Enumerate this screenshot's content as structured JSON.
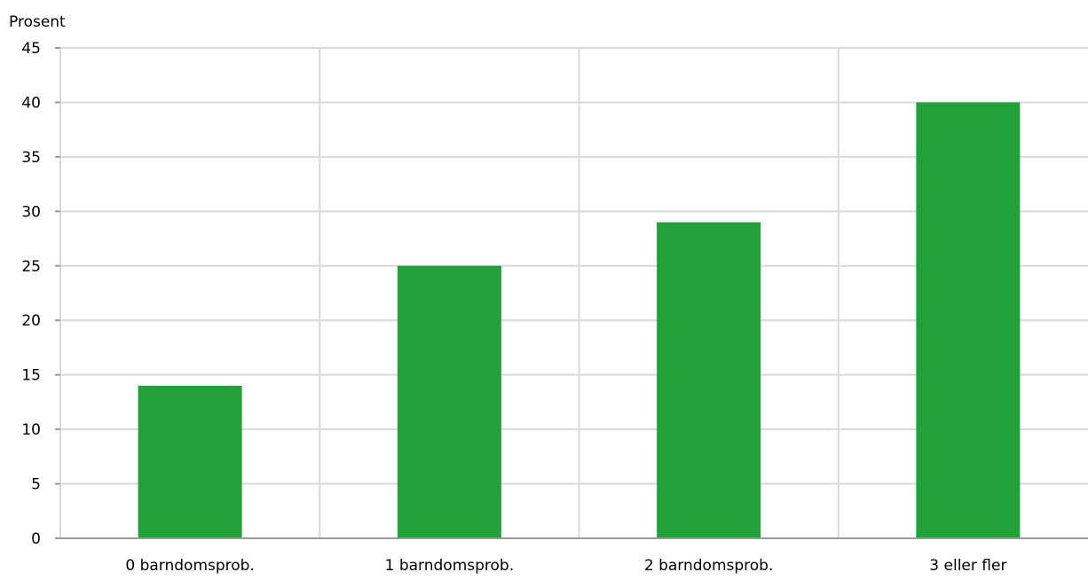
{
  "chart_data": {
    "type": "bar",
    "ylabel": "Prosent",
    "xlabel": "",
    "categories": [
      "0 barndomsprob.",
      "1 barndomsprob.",
      "2 barndomsprob.",
      "3 eller fler"
    ],
    "values": [
      14,
      25,
      29,
      40
    ],
    "ylim": [
      0,
      45
    ],
    "yticks": [
      0,
      5,
      10,
      15,
      20,
      25,
      30,
      35,
      40,
      45
    ],
    "grid": true,
    "bar_color": "#22a03a",
    "grid_color": "#d9d9d9"
  }
}
